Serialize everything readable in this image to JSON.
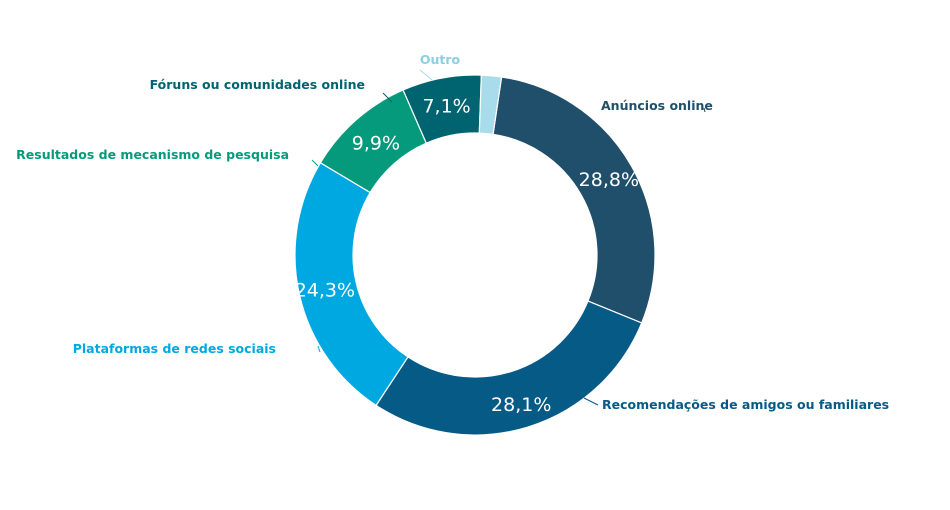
{
  "chart_data": {
    "type": "pie",
    "variant": "donut",
    "title": "",
    "legend": "none",
    "slices": [
      {
        "label": "Anúncios online",
        "value": 28.8,
        "display": "28,8%",
        "color": "#1f4f6b"
      },
      {
        "label": "Recomendações de amigos ou familiares",
        "value": 28.1,
        "display": "28,1%",
        "color": "#065a86"
      },
      {
        "label": "Plataformas de redes sociais",
        "value": 24.3,
        "display": "24,3%",
        "color": "#00a8e1"
      },
      {
        "label": "Resultados de mecanismo de pesquisa",
        "value": 9.9,
        "display": "9,9%",
        "color": "#069a7d"
      },
      {
        "label": "Fóruns ou comunidades online",
        "value": 7.1,
        "display": "7,1%",
        "color": "#006370"
      },
      {
        "label": "Outro",
        "value": 1.8,
        "display": "",
        "color": "#a9dcea"
      }
    ]
  }
}
